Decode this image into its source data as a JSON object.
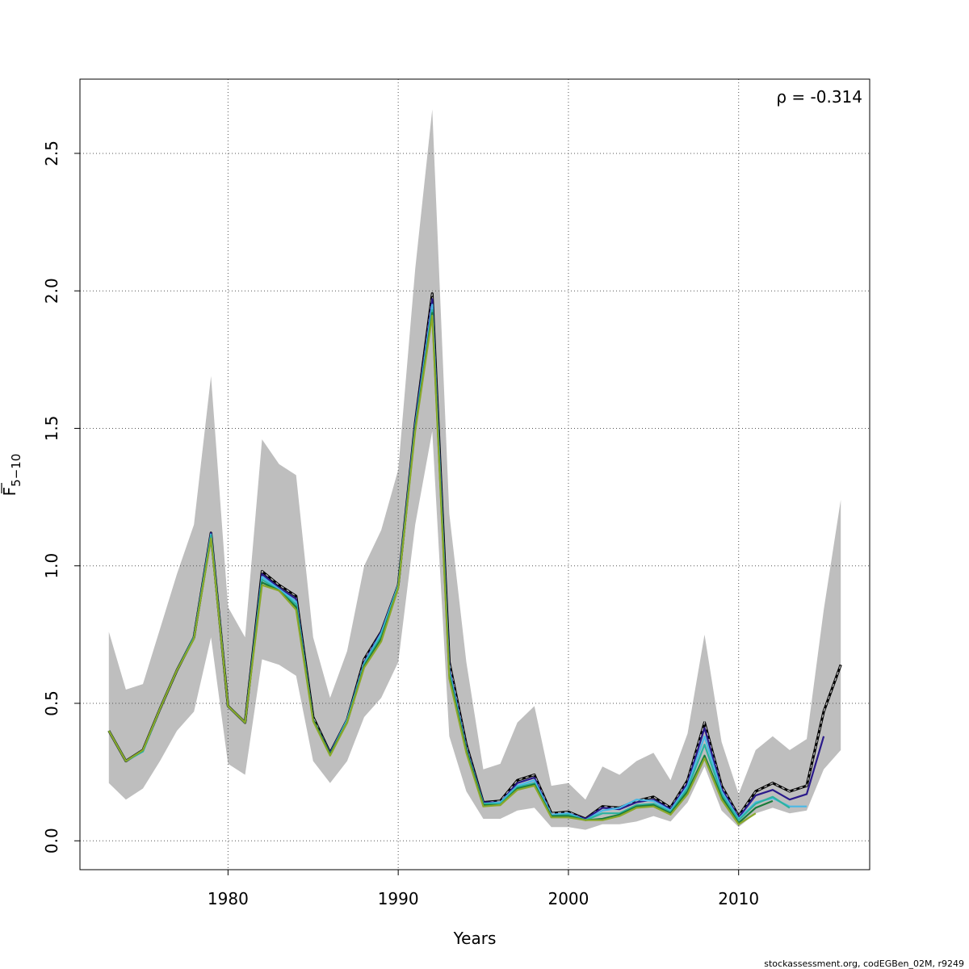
{
  "chart_data": {
    "type": "line",
    "xlabel": "Years",
    "ylabel_main": "F",
    "ylabel_sub": "5−10",
    "annotation": "ρ = -0.314",
    "credit": "stockassessment.org, codEGBen_02M, r9249",
    "xlim": [
      1971.3,
      2017.7
    ],
    "ylim": [
      -0.105,
      2.77
    ],
    "x_ticks": [
      1980,
      1990,
      2000,
      2010
    ],
    "x_tick_labels": [
      "1980",
      "1990",
      "2000",
      "2010"
    ],
    "y_ticks": [
      0.0,
      0.5,
      1.0,
      1.5,
      2.0,
      2.5
    ],
    "y_tick_labels": [
      "0.0",
      "0.5",
      "1.0",
      "1.5",
      "2.0",
      "2.5"
    ],
    "grid": true,
    "colors": {
      "band": "#bebebe",
      "frame": "#000000",
      "grid": "#555555"
    },
    "band": {
      "years": [
        1973,
        1974,
        1975,
        1976,
        1977,
        1978,
        1979,
        1980,
        1981,
        1982,
        1983,
        1984,
        1985,
        1986,
        1987,
        1988,
        1989,
        1990,
        1991,
        1992,
        1993,
        1994,
        1995,
        1996,
        1997,
        1998,
        1999,
        2000,
        2001,
        2002,
        2003,
        2004,
        2005,
        2006,
        2007,
        2008,
        2009,
        2010,
        2011,
        2012,
        2013,
        2014,
        2015,
        2016
      ],
      "upper": [
        0.76,
        0.55,
        0.57,
        0.77,
        0.97,
        1.15,
        1.69,
        0.85,
        0.74,
        1.46,
        1.37,
        1.33,
        0.74,
        0.52,
        0.69,
        1.0,
        1.13,
        1.35,
        2.08,
        2.66,
        1.19,
        0.65,
        0.26,
        0.28,
        0.43,
        0.49,
        0.2,
        0.21,
        0.15,
        0.27,
        0.24,
        0.29,
        0.32,
        0.22,
        0.39,
        0.75,
        0.36,
        0.17,
        0.33,
        0.38,
        0.33,
        0.37,
        0.84,
        1.24
      ],
      "lower": [
        0.21,
        0.15,
        0.19,
        0.29,
        0.4,
        0.47,
        0.74,
        0.28,
        0.24,
        0.66,
        0.64,
        0.6,
        0.29,
        0.21,
        0.29,
        0.45,
        0.52,
        0.65,
        1.15,
        1.49,
        0.38,
        0.18,
        0.08,
        0.08,
        0.11,
        0.12,
        0.05,
        0.05,
        0.04,
        0.06,
        0.06,
        0.07,
        0.09,
        0.07,
        0.14,
        0.27,
        0.11,
        0.05,
        0.1,
        0.12,
        0.1,
        0.11,
        0.26,
        0.33
      ]
    },
    "series": [
      {
        "id": "terminal",
        "color": "#000000",
        "dash": true,
        "years": [
          1973,
          1974,
          1975,
          1976,
          1977,
          1978,
          1979,
          1980,
          1981,
          1982,
          1983,
          1984,
          1985,
          1986,
          1987,
          1988,
          1989,
          1990,
          1991,
          1992,
          1993,
          1994,
          1995,
          1996,
          1997,
          1998,
          1999,
          2000,
          2001,
          2002,
          2003,
          2004,
          2005,
          2006,
          2007,
          2008,
          2009,
          2010,
          2011,
          2012,
          2013,
          2014,
          2015,
          2016
        ],
        "values": [
          0.4,
          0.29,
          0.33,
          0.48,
          0.62,
          0.74,
          1.12,
          0.49,
          0.43,
          0.98,
          0.93,
          0.89,
          0.45,
          0.32,
          0.44,
          0.66,
          0.76,
          0.93,
          1.52,
          1.99,
          0.65,
          0.35,
          0.14,
          0.145,
          0.22,
          0.24,
          0.1,
          0.105,
          0.08,
          0.125,
          0.12,
          0.145,
          0.16,
          0.12,
          0.22,
          0.43,
          0.2,
          0.09,
          0.18,
          0.21,
          0.18,
          0.2,
          0.47,
          0.64
        ]
      },
      {
        "id": "peel-1",
        "color": "#2a1a8a",
        "dash": false,
        "years": [
          1973,
          1974,
          1975,
          1976,
          1977,
          1978,
          1979,
          1980,
          1981,
          1982,
          1983,
          1984,
          1985,
          1986,
          1987,
          1988,
          1989,
          1990,
          1991,
          1992,
          1993,
          1994,
          1995,
          1996,
          1997,
          1998,
          1999,
          2000,
          2001,
          2002,
          2003,
          2004,
          2005,
          2006,
          2007,
          2008,
          2009,
          2010,
          2011,
          2012,
          2013,
          2014,
          2015
        ],
        "values": [
          0.4,
          0.29,
          0.33,
          0.48,
          0.62,
          0.74,
          1.12,
          0.49,
          0.43,
          0.97,
          0.92,
          0.88,
          0.44,
          0.32,
          0.44,
          0.65,
          0.76,
          0.93,
          1.52,
          1.97,
          0.63,
          0.34,
          0.14,
          0.14,
          0.21,
          0.23,
          0.095,
          0.1,
          0.08,
          0.12,
          0.115,
          0.14,
          0.15,
          0.115,
          0.21,
          0.41,
          0.19,
          0.085,
          0.165,
          0.185,
          0.15,
          0.17,
          0.38
        ]
      },
      {
        "id": "peel-2",
        "color": "#4ab8e6",
        "dash": false,
        "years": [
          1973,
          1974,
          1975,
          1976,
          1977,
          1978,
          1979,
          1980,
          1981,
          1982,
          1983,
          1984,
          1985,
          1986,
          1987,
          1988,
          1989,
          1990,
          1991,
          1992,
          1993,
          1994,
          1995,
          1996,
          1997,
          1998,
          1999,
          2000,
          2001,
          2002,
          2003,
          2004,
          2005,
          2006,
          2007,
          2008,
          2009,
          2010,
          2011,
          2012,
          2013,
          2014
        ],
        "values": [
          0.4,
          0.29,
          0.325,
          0.48,
          0.62,
          0.74,
          1.115,
          0.49,
          0.43,
          0.96,
          0.915,
          0.87,
          0.44,
          0.315,
          0.44,
          0.645,
          0.755,
          0.93,
          1.51,
          1.95,
          0.62,
          0.335,
          0.135,
          0.14,
          0.2,
          0.22,
          0.095,
          0.1,
          0.075,
          0.11,
          0.12,
          0.15,
          0.145,
          0.11,
          0.2,
          0.38,
          0.18,
          0.08,
          0.14,
          0.155,
          0.125,
          0.125
        ]
      },
      {
        "id": "peel-3",
        "color": "#2bb3a0",
        "dash": false,
        "years": [
          1973,
          1974,
          1975,
          1976,
          1977,
          1978,
          1979,
          1980,
          1981,
          1982,
          1983,
          1984,
          1985,
          1986,
          1987,
          1988,
          1989,
          1990,
          1991,
          1992,
          1993,
          1994,
          1995,
          1996,
          1997,
          1998,
          1999,
          2000,
          2001,
          2002,
          2003,
          2004,
          2005,
          2006,
          2007,
          2008,
          2009,
          2010,
          2011,
          2012,
          2013
        ],
        "values": [
          0.4,
          0.29,
          0.325,
          0.48,
          0.62,
          0.74,
          1.11,
          0.49,
          0.43,
          0.95,
          0.91,
          0.86,
          0.44,
          0.315,
          0.435,
          0.64,
          0.745,
          0.925,
          1.5,
          1.93,
          0.61,
          0.33,
          0.135,
          0.135,
          0.195,
          0.21,
          0.09,
          0.095,
          0.075,
          0.1,
          0.1,
          0.13,
          0.135,
          0.105,
          0.19,
          0.35,
          0.17,
          0.075,
          0.135,
          0.16,
          0.12
        ]
      },
      {
        "id": "peel-4",
        "color": "#1a7a3a",
        "dash": false,
        "years": [
          1973,
          1974,
          1975,
          1976,
          1977,
          1978,
          1979,
          1980,
          1981,
          1982,
          1983,
          1984,
          1985,
          1986,
          1987,
          1988,
          1989,
          1990,
          1991,
          1992,
          1993,
          1994,
          1995,
          1996,
          1997,
          1998,
          1999,
          2000,
          2001,
          2002,
          2003,
          2004,
          2005,
          2006,
          2007,
          2008,
          2009,
          2010,
          2011,
          2012
        ],
        "values": [
          0.4,
          0.29,
          0.33,
          0.48,
          0.62,
          0.735,
          1.1,
          0.49,
          0.43,
          0.94,
          0.91,
          0.85,
          0.44,
          0.315,
          0.43,
          0.635,
          0.735,
          0.92,
          1.5,
          1.92,
          0.6,
          0.33,
          0.13,
          0.13,
          0.19,
          0.205,
          0.09,
          0.09,
          0.075,
          0.08,
          0.095,
          0.125,
          0.13,
          0.1,
          0.18,
          0.31,
          0.16,
          0.065,
          0.12,
          0.145
        ]
      },
      {
        "id": "peel-5",
        "color": "#8aa82a",
        "dash": false,
        "years": [
          1973,
          1974,
          1975,
          1976,
          1977,
          1978,
          1979,
          1980,
          1981,
          1982,
          1983,
          1984,
          1985,
          1986,
          1987,
          1988,
          1989,
          1990,
          1991,
          1992,
          1993,
          1994,
          1995,
          1996,
          1997,
          1998,
          1999,
          2000,
          2001,
          2002,
          2003,
          2004,
          2005,
          2006,
          2007,
          2008,
          2009,
          2010,
          2011
        ],
        "values": [
          0.4,
          0.29,
          0.33,
          0.48,
          0.62,
          0.735,
          1.1,
          0.49,
          0.43,
          0.93,
          0.91,
          0.84,
          0.435,
          0.31,
          0.43,
          0.63,
          0.725,
          0.92,
          1.49,
          1.91,
          0.59,
          0.32,
          0.125,
          0.13,
          0.185,
          0.2,
          0.085,
          0.085,
          0.075,
          0.075,
          0.09,
          0.12,
          0.125,
          0.095,
          0.17,
          0.3,
          0.15,
          0.06,
          0.1
        ]
      }
    ]
  }
}
